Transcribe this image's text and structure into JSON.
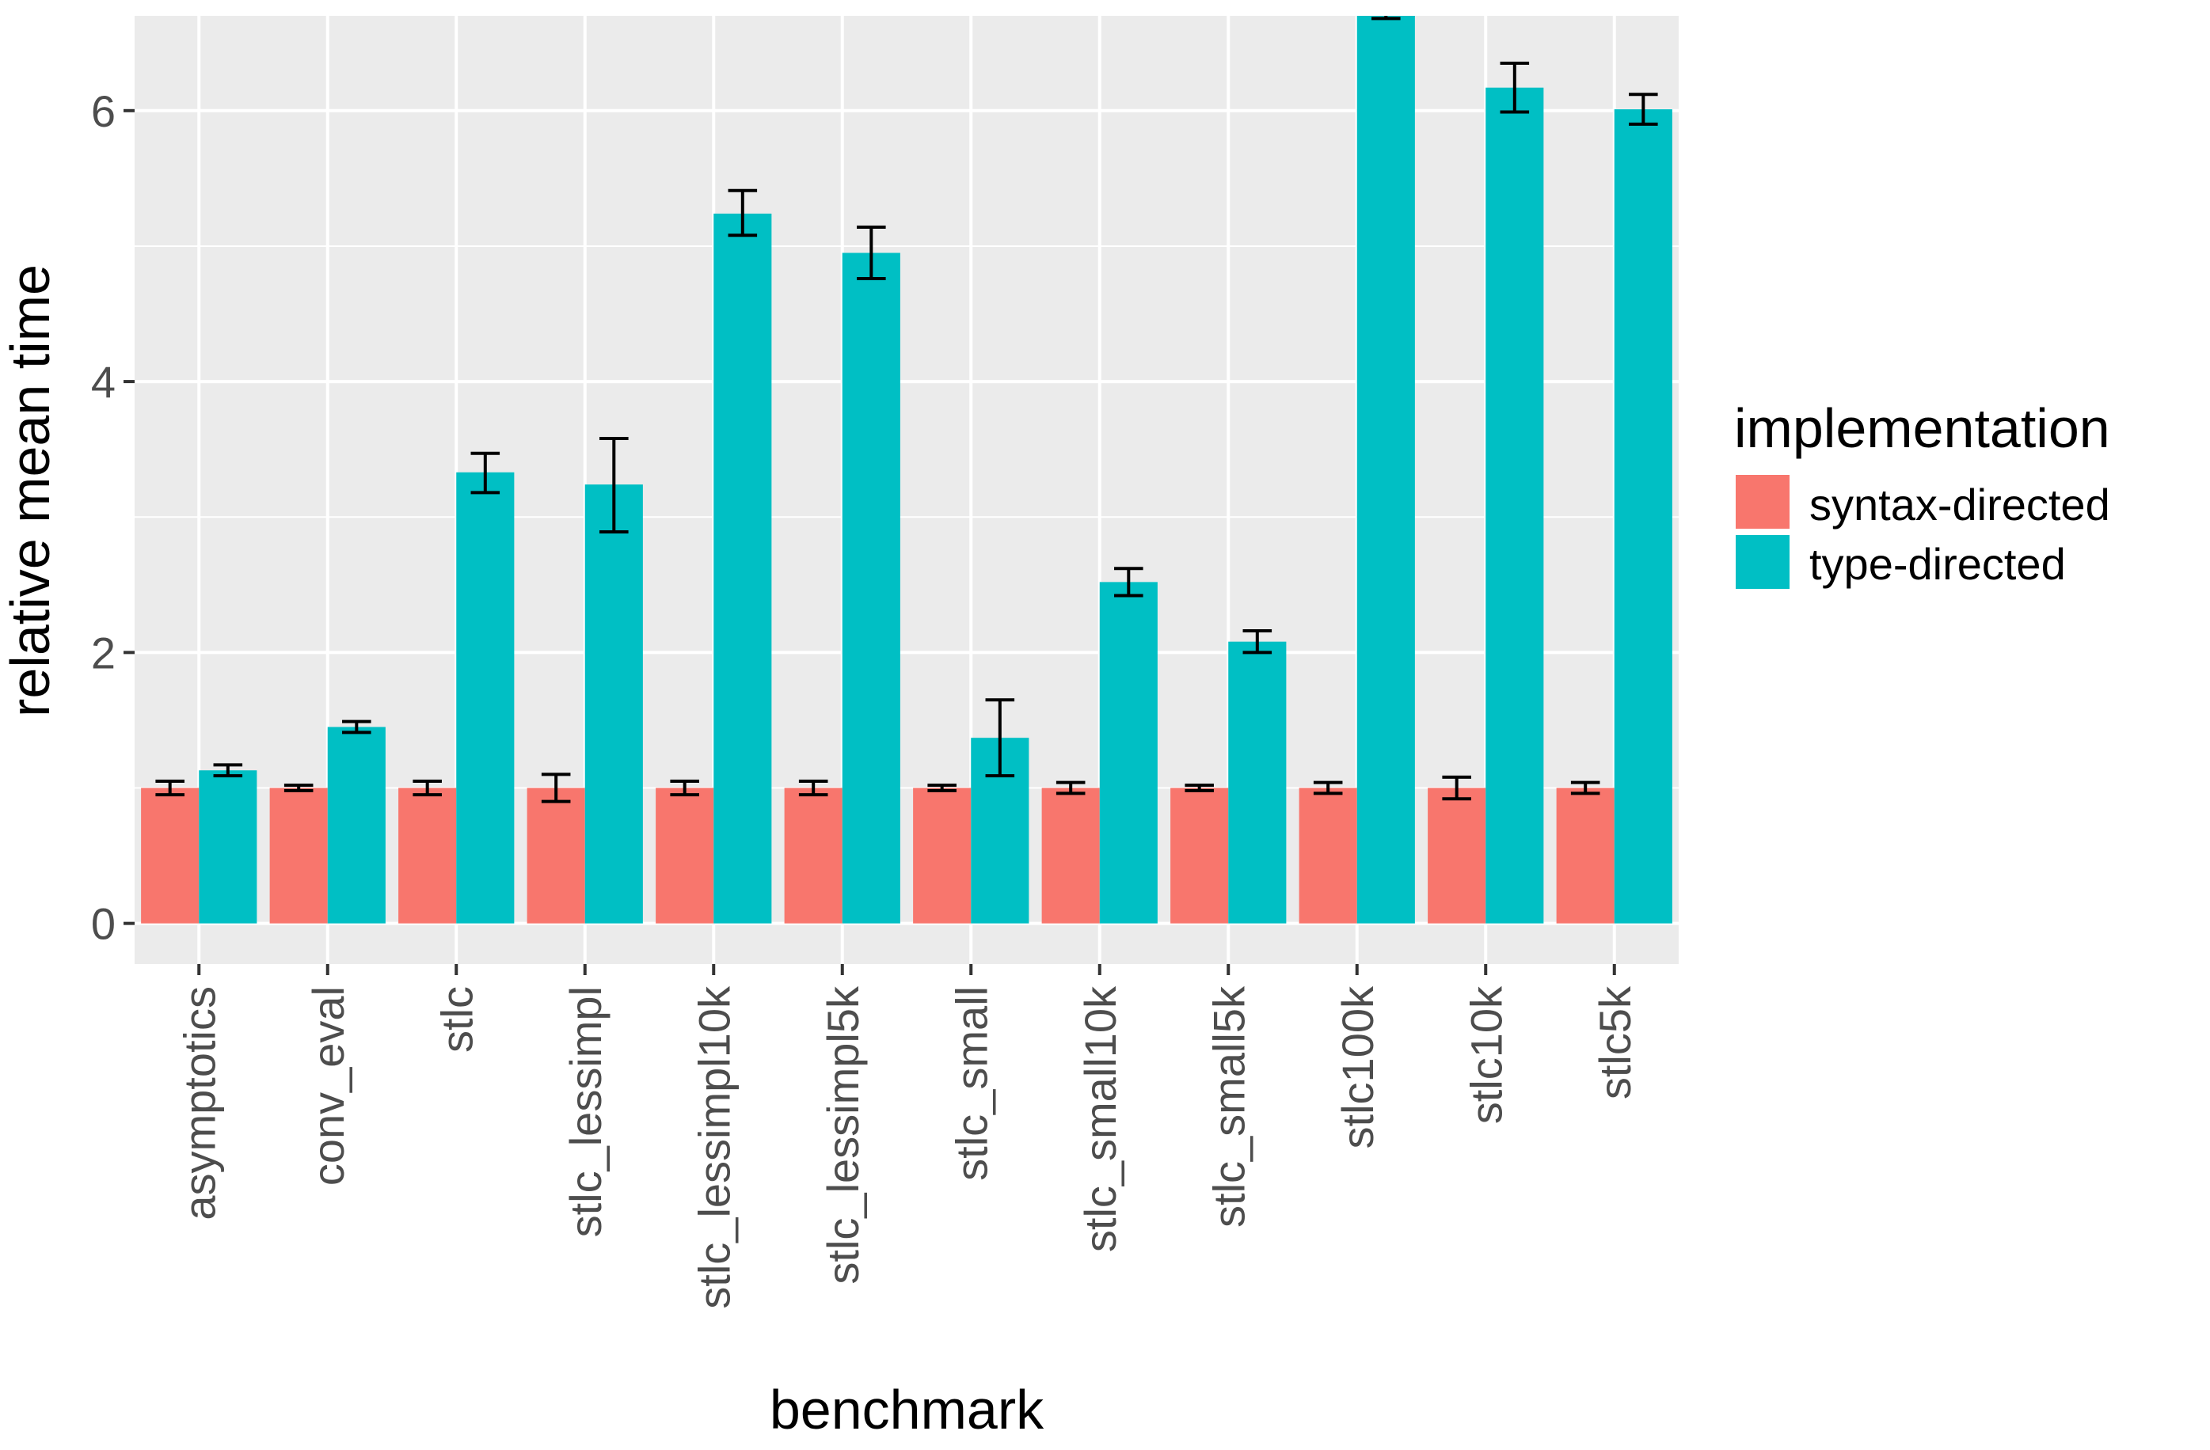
{
  "chart_data": {
    "type": "bar",
    "xlabel": "benchmark",
    "ylabel": "relative mean time",
    "ylim": [
      -0.3,
      6.7
    ],
    "y_ticks": [
      0,
      2,
      4,
      6
    ],
    "grid": true,
    "legend_position": "right",
    "legend": {
      "title": "implementation",
      "entries": [
        "syntax-directed",
        "type-directed"
      ]
    },
    "colors": {
      "syntax-directed": "#F8766D",
      "type-directed": "#00BFC4",
      "panel": "#EBEBEB",
      "grid": "#FFFFFF",
      "errorbar": "#000000"
    },
    "categories": [
      "asymptotics",
      "conv_eval",
      "stlc",
      "stlc_lessimpl",
      "stlc_lessimpl10k",
      "stlc_lessimpl5k",
      "stlc_small",
      "stlc_small10k",
      "stlc_small5k",
      "stlc100k",
      "stlc10k",
      "stlc5k"
    ],
    "series": [
      {
        "name": "syntax-directed",
        "values": [
          1.0,
          1.0,
          1.0,
          1.0,
          1.0,
          1.0,
          1.0,
          1.0,
          1.0,
          1.0,
          1.0,
          1.0
        ],
        "err_low": [
          0.95,
          0.98,
          0.95,
          0.9,
          0.95,
          0.95,
          0.98,
          0.96,
          0.98,
          0.96,
          0.92,
          0.96
        ],
        "err_high": [
          1.05,
          1.02,
          1.05,
          1.1,
          1.05,
          1.05,
          1.02,
          1.04,
          1.02,
          1.04,
          1.08,
          1.04
        ]
      },
      {
        "name": "type-directed",
        "values": [
          1.13,
          1.45,
          3.33,
          3.24,
          5.24,
          4.95,
          1.37,
          2.52,
          2.08,
          7.0,
          6.17,
          6.01
        ],
        "err_low": [
          1.09,
          1.41,
          3.18,
          2.89,
          5.08,
          4.76,
          1.09,
          2.42,
          2.0,
          6.68,
          5.99,
          5.9
        ],
        "err_high": [
          1.17,
          1.49,
          3.47,
          3.58,
          5.41,
          5.14,
          1.65,
          2.62,
          2.16,
          7.5,
          6.35,
          6.12
        ]
      }
    ]
  }
}
